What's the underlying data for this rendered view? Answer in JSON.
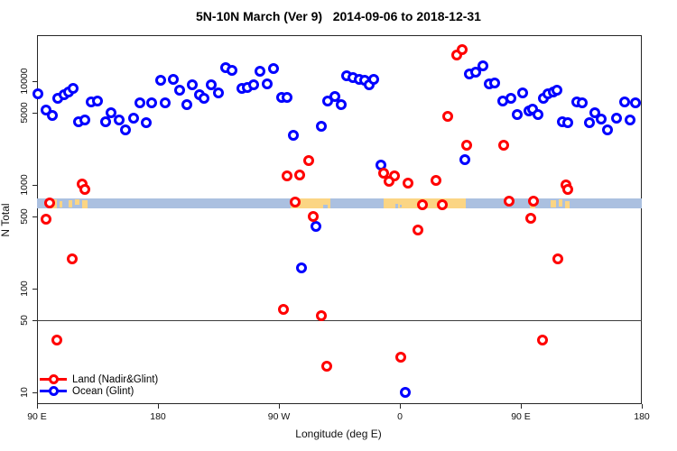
{
  "chart_data": {
    "type": "scatter",
    "title": "5N-10N March (Ver 9)   2014-09-06 to 2018-12-31",
    "xlabel": "Longitude (deg E)",
    "ylabel": "N Total",
    "x_axis": {
      "range_axis_deg": [
        90,
        540
      ],
      "wrap_note": "longitude axis wraps eastward: 90E, 180, 90W, 0, 90E, 180",
      "ticks": [
        {
          "pos": 90,
          "label": "90 E"
        },
        {
          "pos": 180,
          "label": "180"
        },
        {
          "pos": 270,
          "label": "90 W"
        },
        {
          "pos": 360,
          "label": "0"
        },
        {
          "pos": 450,
          "label": "90 E"
        },
        {
          "pos": 540,
          "label": "180"
        }
      ]
    },
    "y_axis": {
      "scale": "log",
      "range": [
        8,
        32000
      ],
      "ticks": [
        10000,
        5000,
        1000,
        500,
        100,
        50,
        10
      ],
      "tick_labels": [
        "10000",
        "5000",
        "1000",
        "500",
        "100",
        "50",
        "10"
      ]
    },
    "threshold_line_n": 50,
    "map_band": {
      "n_range": [
        590,
        740
      ],
      "ocean_color": "#abc0e0",
      "land_color": "#fbd584",
      "land_segments": [
        {
          "from": 100.8,
          "to": 105.0,
          "inset_top": 0.1,
          "inset_bottom": 1.0
        },
        {
          "from": 107.0,
          "to": 109.0,
          "inset_top": 0.3,
          "inset_bottom": 0.85
        },
        {
          "from": 113.5,
          "to": 116.5,
          "inset_top": 0.15,
          "inset_bottom": 0.9
        },
        {
          "from": 118.5,
          "to": 121.5,
          "inset_top": 0.1,
          "inset_bottom": 0.65
        },
        {
          "from": 123.5,
          "to": 127.5,
          "inset_top": 0.2,
          "inset_bottom": 0.95
        },
        {
          "from": 278.5,
          "to": 308.5,
          "inset_top": 0.0,
          "inset_bottom": 1.0
        },
        {
          "from": 348.0,
          "to": 409.0,
          "inset_top": 0.0,
          "inset_bottom": 1.0
        },
        {
          "from": 457.0,
          "to": 461.0,
          "inset_top": 0.1,
          "inset_bottom": 1.0
        },
        {
          "from": 472.0,
          "to": 476.0,
          "inset_top": 0.15,
          "inset_bottom": 0.9
        },
        {
          "from": 478.0,
          "to": 481.0,
          "inset_top": 0.05,
          "inset_bottom": 0.75
        },
        {
          "from": 483.0,
          "to": 486.5,
          "inset_top": 0.25,
          "inset_bottom": 1.0
        }
      ],
      "lakes": [
        {
          "from": 303.0,
          "to": 306.0,
          "inset_top": 0.6,
          "inset_bottom": 1.0
        },
        {
          "from": 356.5,
          "to": 358.5,
          "inset_top": 0.55,
          "inset_bottom": 0.95
        },
        {
          "from": 360.0,
          "to": 361.5,
          "inset_top": 0.6,
          "inset_bottom": 0.9
        }
      ]
    },
    "series": [
      {
        "name": "Land (Nadir&Glint)",
        "color": "#ff0000",
        "marker": "open-circle",
        "points": [
          [
            99.4,
            670
          ],
          [
            96.7,
            470
          ],
          [
            123.6,
            1020
          ],
          [
            125.6,
            910
          ],
          [
            104.8,
            32
          ],
          [
            116.2,
            195
          ],
          [
            276.1,
            1220
          ],
          [
            285.5,
            1250
          ],
          [
            282.1,
            685
          ],
          [
            295.5,
            500
          ],
          [
            292.2,
            1710
          ],
          [
            273.4,
            63
          ],
          [
            301.6,
            55
          ],
          [
            305.6,
            18
          ],
          [
            347.9,
            1300
          ],
          [
            356.0,
            1220
          ],
          [
            351.9,
            1080
          ],
          [
            366.0,
            1040
          ],
          [
            373.1,
            365
          ],
          [
            360.7,
            22
          ],
          [
            386.9,
            1100
          ],
          [
            376.8,
            645
          ],
          [
            391.6,
            645
          ],
          [
            395.6,
            4600
          ],
          [
            402.3,
            18000
          ],
          [
            406.3,
            20000
          ],
          [
            409.7,
            2400
          ],
          [
            437.2,
            2400
          ],
          [
            441.3,
            700
          ],
          [
            459.4,
            700
          ],
          [
            457.4,
            480
          ],
          [
            466.1,
            32
          ],
          [
            477.5,
            195
          ],
          [
            483.6,
            1000
          ],
          [
            484.9,
            910
          ]
        ]
      },
      {
        "name": "Ocean (Glint)",
        "color": "#0000ff",
        "marker": "open-circle",
        "points": [
          [
            90.7,
            7600
          ],
          [
            96.7,
            5300
          ],
          [
            101.4,
            4700
          ],
          [
            105.4,
            6900
          ],
          [
            110.1,
            7400
          ],
          [
            113.5,
            7900
          ],
          [
            116.9,
            8500
          ],
          [
            120.9,
            4100
          ],
          [
            125.6,
            4200
          ],
          [
            130.3,
            6300
          ],
          [
            135.0,
            6400
          ],
          [
            141.0,
            4100
          ],
          [
            145.1,
            5000
          ],
          [
            151.1,
            4200
          ],
          [
            155.8,
            3400
          ],
          [
            161.9,
            4400
          ],
          [
            166.6,
            6200
          ],
          [
            171.3,
            4000
          ],
          [
            175.3,
            6200
          ],
          [
            182.0,
            10200
          ],
          [
            185.4,
            6200
          ],
          [
            191.4,
            10400
          ],
          [
            196.1,
            8200
          ],
          [
            201.5,
            5900
          ],
          [
            205.5,
            9200
          ],
          [
            210.9,
            7400
          ],
          [
            214.3,
            6900
          ],
          [
            219.6,
            9200
          ],
          [
            225.0,
            7700
          ],
          [
            230.4,
            13500
          ],
          [
            235.1,
            12700
          ],
          [
            242.5,
            8500
          ],
          [
            246.5,
            8700
          ],
          [
            251.2,
            9200
          ],
          [
            255.9,
            12400
          ],
          [
            261.3,
            9400
          ],
          [
            266.0,
            13200
          ],
          [
            272.0,
            7000
          ],
          [
            276.1,
            7000
          ],
          [
            280.8,
            3000
          ],
          [
            286.8,
            160
          ],
          [
            297.5,
            395
          ],
          [
            301.6,
            3700
          ],
          [
            306.3,
            6500
          ],
          [
            311.7,
            7100
          ],
          [
            316.4,
            6000
          ],
          [
            320.4,
            11300
          ],
          [
            325.1,
            10800
          ],
          [
            329.8,
            10400
          ],
          [
            333.8,
            10200
          ],
          [
            337.2,
            9200
          ],
          [
            340.5,
            10400
          ],
          [
            345.9,
            1550
          ],
          [
            364.0,
            10
          ],
          [
            408.3,
            1740
          ],
          [
            411.7,
            11700
          ],
          [
            416.4,
            12200
          ],
          [
            421.8,
            14000
          ],
          [
            426.5,
            9400
          ],
          [
            430.5,
            9600
          ],
          [
            436.6,
            6500
          ],
          [
            442.6,
            6900
          ],
          [
            447.3,
            4800
          ],
          [
            451.3,
            7700
          ],
          [
            456.0,
            5200
          ],
          [
            458.7,
            5400
          ],
          [
            462.7,
            4800
          ],
          [
            466.8,
            6900
          ],
          [
            470.1,
            7600
          ],
          [
            474.2,
            7900
          ],
          [
            476.8,
            8200
          ],
          [
            480.9,
            4100
          ],
          [
            484.9,
            4000
          ],
          [
            491.6,
            6300
          ],
          [
            495.7,
            6200
          ],
          [
            501.0,
            4000
          ],
          [
            505.1,
            5000
          ],
          [
            509.8,
            4300
          ],
          [
            514.5,
            3400
          ],
          [
            521.2,
            4400
          ],
          [
            527.2,
            6300
          ],
          [
            531.3,
            4200
          ],
          [
            535.3,
            6200
          ]
        ]
      }
    ]
  }
}
